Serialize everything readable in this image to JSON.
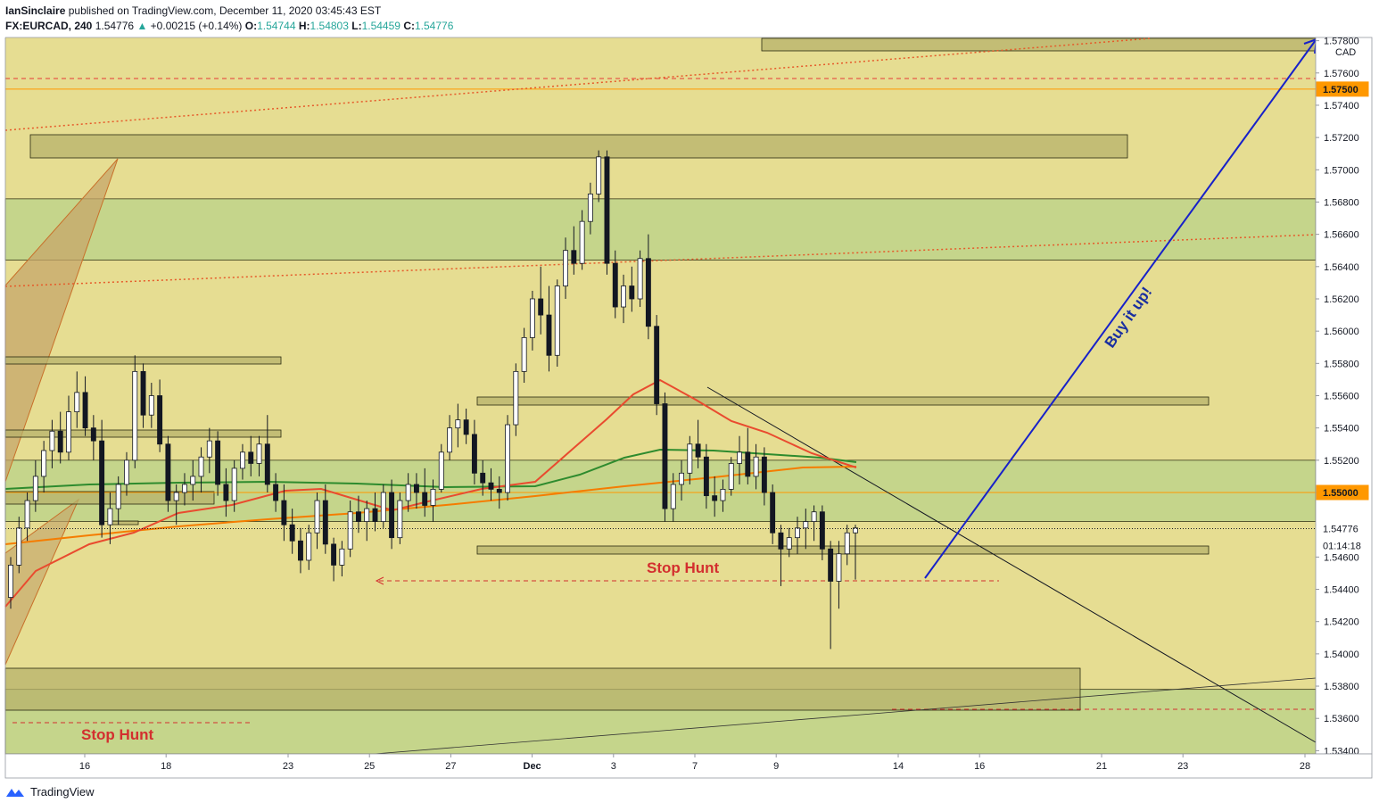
{
  "header": {
    "publisher": "IanSinclaire",
    "published_text": "published on TradingView.com, December 11, 2020 03:45:43 EST"
  },
  "symbol_row": {
    "symbol": "FX:EURCAD, 240",
    "last": "1.54776",
    "change": "+0.00215 (+0.14%)",
    "o_label": "O:",
    "o": "1.54744",
    "h_label": "H:",
    "h": "1.54803",
    "l_label": "L:",
    "l": "1.54459",
    "c_label": "C:",
    "c": "1.54776"
  },
  "footer": {
    "brand": "TradingView"
  },
  "colors": {
    "background": "#e6dd92",
    "zone_fill": "#c5d58b",
    "box_fill": "#b7b26b",
    "up_candle": "#ffffff",
    "down_candle": "#131722",
    "ema_red": "#e94b2f",
    "sma_green": "#2e8b2e",
    "ema_orange": "#f57c00",
    "trend_blue": "#1721c9",
    "stop_hunt": "#d32f2f",
    "price_tag": "#ff9800"
  },
  "chart_data": {
    "type": "candlestick",
    "instrument": "FX:EURCAD",
    "timeframe": "240",
    "currency_label": "CAD",
    "y_ticks": [
      "1.57800",
      "1.57600",
      "1.57400",
      "1.57200",
      "1.57000",
      "1.56800",
      "1.56600",
      "1.56400",
      "1.56200",
      "1.56000",
      "1.55800",
      "1.55600",
      "1.55400",
      "1.55200",
      "1.55000",
      "1.54800",
      "1.54600",
      "1.54400",
      "1.54200",
      "1.54000",
      "1.53800",
      "1.53600",
      "1.53400"
    ],
    "ylim": [
      1.5338,
      1.5782
    ],
    "x_ticks": [
      {
        "label": "16",
        "day": 0
      },
      {
        "label": "18",
        "day": 2
      },
      {
        "label": "23",
        "day": 5
      },
      {
        "label": "25",
        "day": 7
      },
      {
        "label": "27",
        "day": 9
      },
      {
        "label": "Dec",
        "day": 11
      },
      {
        "label": "3",
        "day": 13
      },
      {
        "label": "7",
        "day": 15
      },
      {
        "label": "9",
        "day": 17
      },
      {
        "label": "14",
        "day": 20
      },
      {
        "label": "16",
        "day": 22
      },
      {
        "label": "21",
        "day": 25
      },
      {
        "label": "23",
        "day": 27
      },
      {
        "label": "28",
        "day": 30
      }
    ],
    "price_tags": [
      {
        "label": "1.57500",
        "value": 1.575,
        "style": "orange"
      },
      {
        "label": "1.55000",
        "value": 1.55,
        "style": "orange"
      },
      {
        "label": "1.54776",
        "value": 1.54776,
        "style": "current"
      },
      {
        "label": "01:14:18",
        "value": 1.5467,
        "style": "countdown"
      }
    ],
    "candles": [
      [
        1.5435,
        1.546,
        1.5428,
        1.5455
      ],
      [
        1.5455,
        1.5485,
        1.545,
        1.5478
      ],
      [
        1.5478,
        1.55,
        1.547,
        1.5495
      ],
      [
        1.5495,
        1.552,
        1.5488,
        1.551
      ],
      [
        1.551,
        1.5532,
        1.55,
        1.5526
      ],
      [
        1.5526,
        1.5545,
        1.5515,
        1.5538
      ],
      [
        1.5538,
        1.555,
        1.5518,
        1.5525
      ],
      [
        1.5525,
        1.556,
        1.552,
        1.555
      ],
      [
        1.555,
        1.5575,
        1.554,
        1.5562
      ],
      [
        1.5562,
        1.5572,
        1.5535,
        1.554
      ],
      [
        1.554,
        1.5548,
        1.552,
        1.5532
      ],
      [
        1.5532,
        1.5545,
        1.5472,
        1.548
      ],
      [
        1.548,
        1.55,
        1.5468,
        1.549
      ],
      [
        1.549,
        1.551,
        1.548,
        1.5505
      ],
      [
        1.5505,
        1.5525,
        1.5498,
        1.552
      ],
      [
        1.552,
        1.5585,
        1.5515,
        1.5575
      ],
      [
        1.5575,
        1.558,
        1.554,
        1.5548
      ],
      [
        1.5548,
        1.5568,
        1.554,
        1.556
      ],
      [
        1.556,
        1.557,
        1.5525,
        1.553
      ],
      [
        1.553,
        1.5535,
        1.5488,
        1.5495
      ],
      [
        1.5495,
        1.5505,
        1.548,
        1.55
      ],
      [
        1.55,
        1.5512,
        1.5492,
        1.5505
      ],
      [
        1.5505,
        1.552,
        1.5495,
        1.551
      ],
      [
        1.551,
        1.5528,
        1.55,
        1.5522
      ],
      [
        1.5522,
        1.554,
        1.5512,
        1.5532
      ],
      [
        1.5532,
        1.5538,
        1.5498,
        1.5505
      ],
      [
        1.5505,
        1.5515,
        1.5485,
        1.5495
      ],
      [
        1.5495,
        1.552,
        1.5488,
        1.5515
      ],
      [
        1.5515,
        1.553,
        1.5508,
        1.5525
      ],
      [
        1.5525,
        1.5535,
        1.551,
        1.5518
      ],
      [
        1.5518,
        1.5535,
        1.551,
        1.553
      ],
      [
        1.553,
        1.5548,
        1.55,
        1.5505
      ],
      [
        1.5505,
        1.5512,
        1.5488,
        1.5495
      ],
      [
        1.5495,
        1.5505,
        1.547,
        1.548
      ],
      [
        1.548,
        1.549,
        1.5462,
        1.547
      ],
      [
        1.547,
        1.5478,
        1.545,
        1.5458
      ],
      [
        1.5458,
        1.548,
        1.5452,
        1.5475
      ],
      [
        1.5475,
        1.55,
        1.5465,
        1.5495
      ],
      [
        1.5495,
        1.5505,
        1.5462,
        1.5468
      ],
      [
        1.5468,
        1.5472,
        1.5445,
        1.5455
      ],
      [
        1.5455,
        1.547,
        1.5448,
        1.5465
      ],
      [
        1.5465,
        1.5495,
        1.546,
        1.5488
      ],
      [
        1.5488,
        1.5498,
        1.5475,
        1.5482
      ],
      [
        1.5482,
        1.5495,
        1.547,
        1.549
      ],
      [
        1.549,
        1.55,
        1.5476,
        1.5482
      ],
      [
        1.5482,
        1.5505,
        1.5478,
        1.55
      ],
      [
        1.55,
        1.5508,
        1.5465,
        1.5472
      ],
      [
        1.5472,
        1.55,
        1.5468,
        1.5495
      ],
      [
        1.5495,
        1.5512,
        1.5488,
        1.5505
      ],
      [
        1.5505,
        1.5512,
        1.549,
        1.55
      ],
      [
        1.55,
        1.5515,
        1.5485,
        1.5492
      ],
      [
        1.5492,
        1.5508,
        1.5482,
        1.5502
      ],
      [
        1.5502,
        1.553,
        1.55,
        1.5525
      ],
      [
        1.5525,
        1.5548,
        1.552,
        1.554
      ],
      [
        1.554,
        1.5555,
        1.5528,
        1.5545
      ],
      [
        1.5545,
        1.5552,
        1.553,
        1.5536
      ],
      [
        1.5536,
        1.5545,
        1.5505,
        1.5512
      ],
      [
        1.5512,
        1.552,
        1.5498,
        1.5506
      ],
      [
        1.5506,
        1.5515,
        1.5495,
        1.5502
      ],
      [
        1.5502,
        1.551,
        1.549,
        1.55
      ],
      [
        1.55,
        1.5548,
        1.5495,
        1.5542
      ],
      [
        1.5542,
        1.558,
        1.5535,
        1.5575
      ],
      [
        1.5575,
        1.5602,
        1.5568,
        1.5596
      ],
      [
        1.5596,
        1.5625,
        1.5588,
        1.562
      ],
      [
        1.562,
        1.564,
        1.5598,
        1.561
      ],
      [
        1.561,
        1.5628,
        1.5575,
        1.5585
      ],
      [
        1.5585,
        1.5632,
        1.5578,
        1.5628
      ],
      [
        1.5628,
        1.5658,
        1.562,
        1.565
      ],
      [
        1.565,
        1.5665,
        1.5635,
        1.5642
      ],
      [
        1.5642,
        1.5675,
        1.5638,
        1.5668
      ],
      [
        1.5668,
        1.5692,
        1.566,
        1.5685
      ],
      [
        1.5685,
        1.5712,
        1.568,
        1.5708
      ],
      [
        1.5708,
        1.5712,
        1.5635,
        1.5642
      ],
      [
        1.5642,
        1.565,
        1.5608,
        1.5615
      ],
      [
        1.5615,
        1.5635,
        1.5605,
        1.5628
      ],
      [
        1.5628,
        1.564,
        1.5612,
        1.562
      ],
      [
        1.562,
        1.565,
        1.5615,
        1.5645
      ],
      [
        1.5645,
        1.566,
        1.5595,
        1.5603
      ],
      [
        1.5603,
        1.561,
        1.5548,
        1.5555
      ],
      [
        1.5555,
        1.5562,
        1.5482,
        1.549
      ],
      [
        1.549,
        1.5512,
        1.5482,
        1.5505
      ],
      [
        1.5505,
        1.552,
        1.5495,
        1.5512
      ],
      [
        1.5512,
        1.5535,
        1.5505,
        1.553
      ],
      [
        1.553,
        1.5545,
        1.5515,
        1.5522
      ],
      [
        1.5522,
        1.553,
        1.549,
        1.5498
      ],
      [
        1.5498,
        1.551,
        1.5485,
        1.5495
      ],
      [
        1.5495,
        1.5508,
        1.5488,
        1.5502
      ],
      [
        1.5502,
        1.5522,
        1.5498,
        1.5518
      ],
      [
        1.5518,
        1.5535,
        1.5505,
        1.5525
      ],
      [
        1.5525,
        1.554,
        1.5505,
        1.551
      ],
      [
        1.551,
        1.553,
        1.5502,
        1.5522
      ],
      [
        1.5522,
        1.5528,
        1.5492,
        1.55
      ],
      [
        1.55,
        1.5505,
        1.5468,
        1.5475
      ],
      [
        1.5475,
        1.548,
        1.5442,
        1.5465
      ],
      [
        1.5465,
        1.5478,
        1.546,
        1.5472
      ],
      [
        1.5472,
        1.5485,
        1.5462,
        1.5478
      ],
      [
        1.5478,
        1.549,
        1.5465,
        1.5482
      ],
      [
        1.5482,
        1.5492,
        1.547,
        1.5488
      ],
      [
        1.5488,
        1.5492,
        1.5458,
        1.5465
      ],
      [
        1.5465,
        1.547,
        1.5403,
        1.5445
      ],
      [
        1.5445,
        1.547,
        1.5428,
        1.5462
      ],
      [
        1.5462,
        1.548,
        1.5455,
        1.5475
      ],
      [
        1.5475,
        1.548,
        1.5446,
        1.5478
      ]
    ],
    "zones": [
      {
        "name": "resistance-zone",
        "from": 1.5644,
        "to": 1.5682
      },
      {
        "name": "support-zone",
        "from": 1.5482,
        "to": 1.552
      },
      {
        "name": "demand-zone-bottom",
        "from": 1.5338,
        "to": 1.5378
      }
    ],
    "horizontal_levels": [
      1.575,
      1.55
    ],
    "annotations": [
      {
        "text": "Stop Hunt",
        "kind": "label",
        "placement": "middle"
      },
      {
        "text": "Stop Hunt",
        "kind": "label",
        "placement": "bottom-left"
      },
      {
        "text": "Buy it up!",
        "kind": "label",
        "placement": "along blue arrow"
      }
    ],
    "grid": false,
    "legend": "none"
  }
}
